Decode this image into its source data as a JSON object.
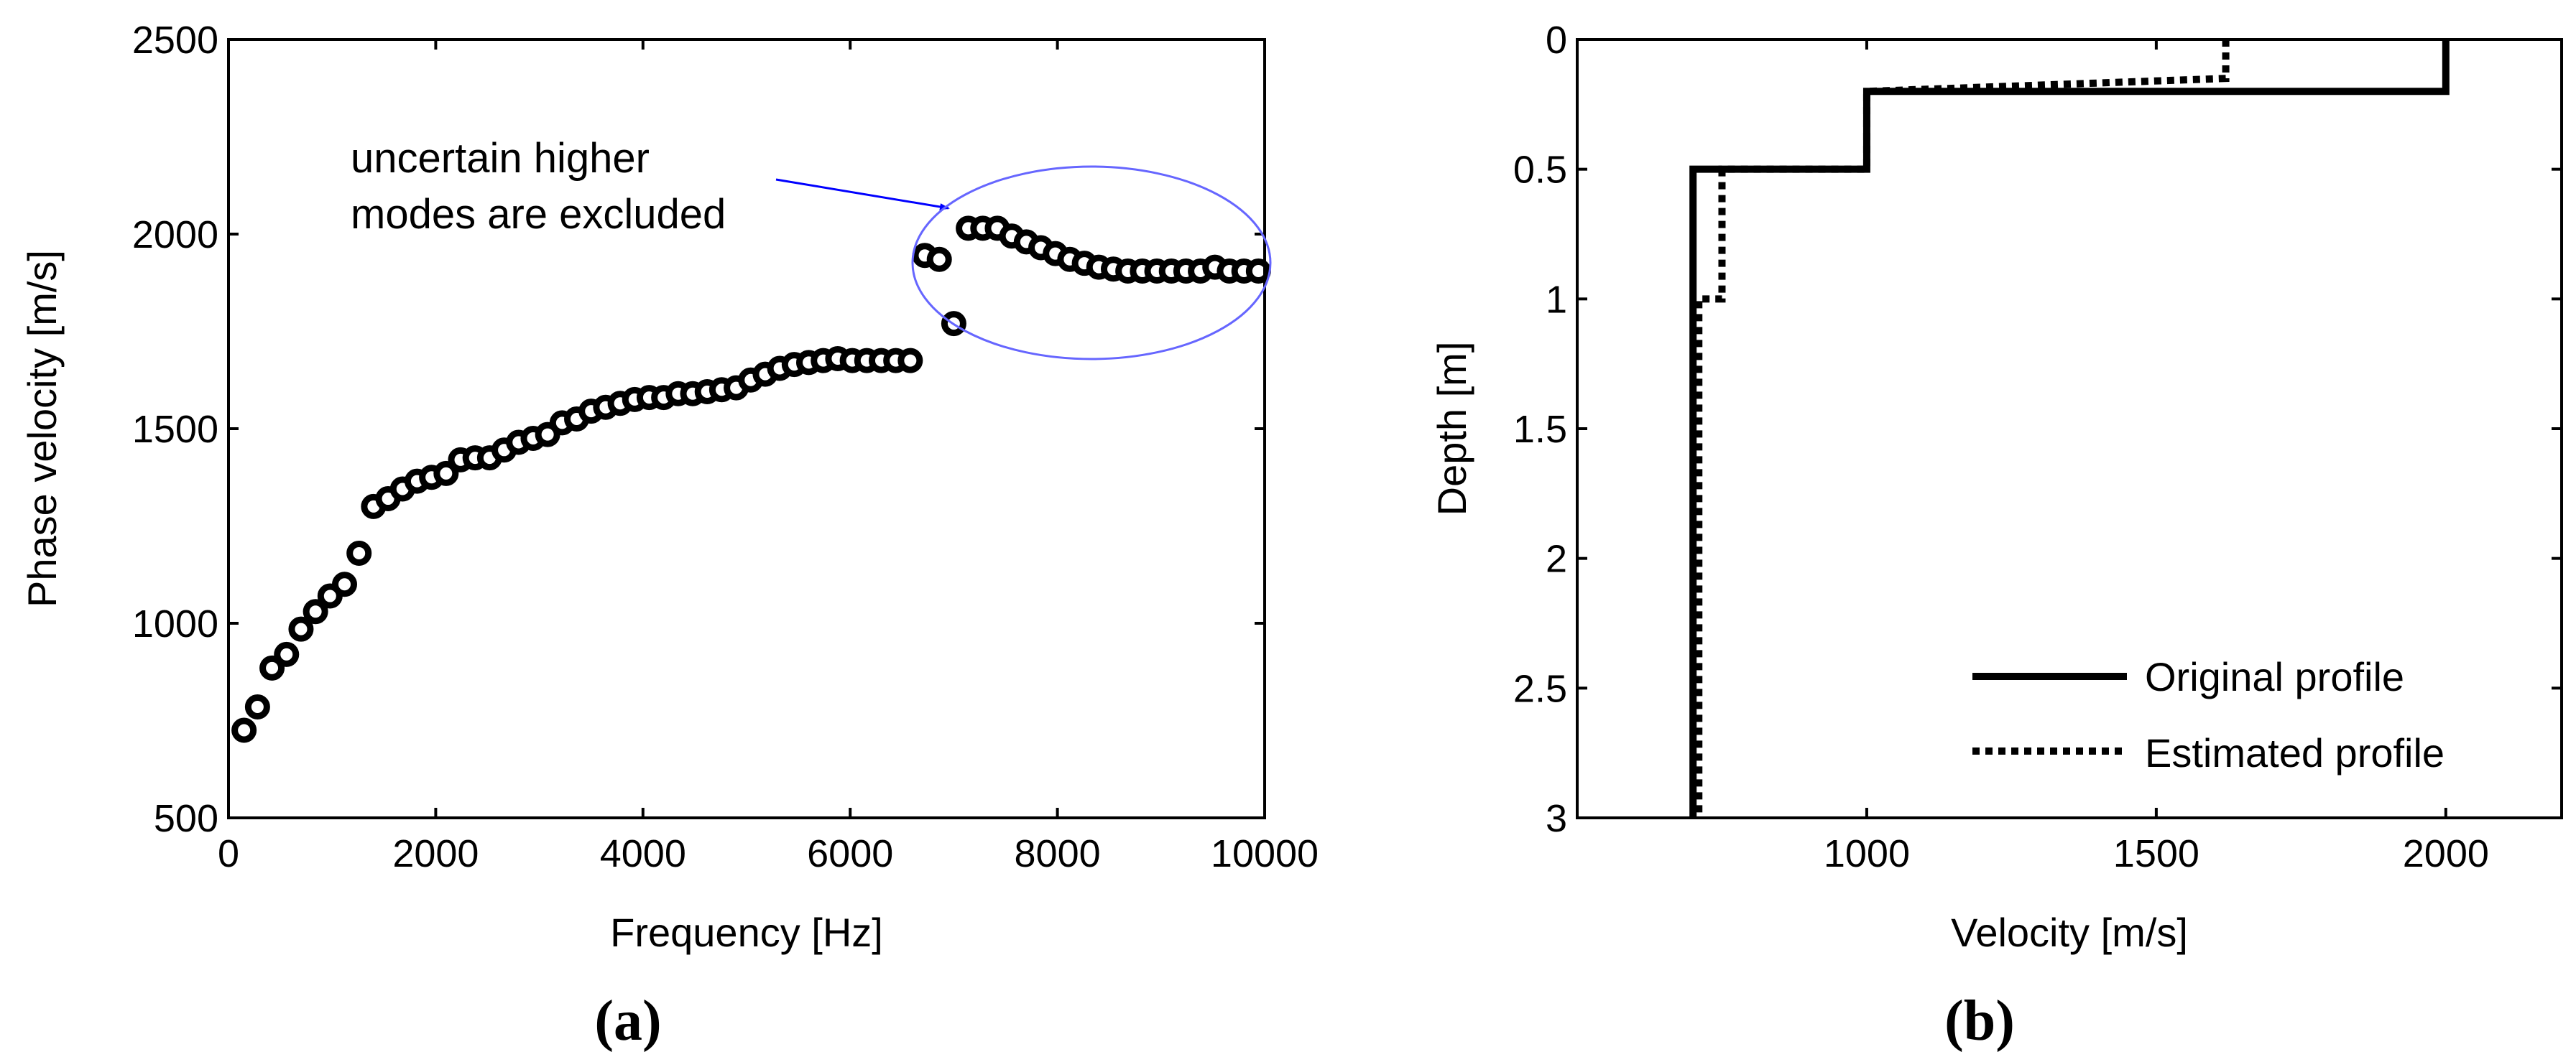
{
  "chart_data": [
    {
      "type": "scatter",
      "panel_label": "(a)",
      "xlabel": "Frequency [Hz]",
      "ylabel": "Phase velocity [m/s]",
      "xlim": [
        0,
        10000
      ],
      "ylim": [
        500,
        2500
      ],
      "xticks": [
        0,
        2000,
        4000,
        6000,
        8000,
        10000
      ],
      "xtick_labels": [
        "0",
        "2000",
        "4000",
        "6000",
        "8000",
        "10000"
      ],
      "yticks": [
        500,
        1000,
        1500,
        2000,
        2500
      ],
      "ytick_labels": [
        "500",
        "1000",
        "1500",
        "2000",
        "2500"
      ],
      "annotation": {
        "lines": [
          "uncertain higher",
          "modes are excluded"
        ],
        "arrow_color": "#0000ff",
        "ellipse_color": "#6666ff"
      },
      "series": [
        {
          "name": "Phase velocity",
          "marker": "circle",
          "x": [
            150,
            280,
            420,
            560,
            700,
            840,
            980,
            1120,
            1260,
            1400,
            1540,
            1680,
            1820,
            1960,
            2100,
            2240,
            2380,
            2520,
            2660,
            2800,
            2940,
            3080,
            3220,
            3360,
            3500,
            3640,
            3780,
            3920,
            4060,
            4200,
            4340,
            4480,
            4620,
            4760,
            4900,
            5040,
            5180,
            5320,
            5460,
            5600,
            5740,
            5880,
            6020,
            6160,
            6300,
            6440,
            6580,
            6720,
            6860,
            7000,
            7140,
            7280,
            7420,
            7560,
            7700,
            7840,
            7980,
            8120,
            8260,
            8400,
            8540,
            8680,
            8820,
            8960,
            9100,
            9240,
            9380,
            9520,
            9660,
            9800,
            9940
          ],
          "y": [
            725,
            785,
            885,
            920,
            985,
            1030,
            1070,
            1100,
            1180,
            1300,
            1320,
            1345,
            1365,
            1375,
            1385,
            1420,
            1425,
            1425,
            1445,
            1465,
            1475,
            1485,
            1515,
            1525,
            1545,
            1555,
            1565,
            1575,
            1580,
            1580,
            1590,
            1590,
            1595,
            1600,
            1605,
            1625,
            1640,
            1655,
            1665,
            1670,
            1675,
            1680,
            1675,
            1675,
            1675,
            1675,
            1675,
            1945,
            1935,
            1770,
            2015,
            2015,
            2015,
            1995,
            1980,
            1965,
            1950,
            1935,
            1925,
            1915,
            1910,
            1905,
            1905,
            1905,
            1905,
            1905,
            1905,
            1915,
            1905,
            1905,
            1905
          ]
        }
      ]
    },
    {
      "type": "line",
      "panel_label": "(b)",
      "xlabel": "Velocity [m/s]",
      "ylabel": "Depth [m]",
      "xlim": [
        500,
        2200
      ],
      "ylim": [
        0,
        3
      ],
      "y_reversed": true,
      "xticks": [
        1000,
        1500,
        2000
      ],
      "xtick_labels": [
        "1000",
        "1500",
        "2000"
      ],
      "yticks": [
        0,
        0.5,
        1,
        1.5,
        2,
        2.5,
        3
      ],
      "ytick_labels": [
        "0",
        "0.5",
        "1",
        "1.5",
        "2",
        "2.5",
        "3"
      ],
      "legend_position": "bottom-right",
      "series": [
        {
          "name": "Original profile",
          "style": "solid",
          "x": [
            2000,
            2000,
            1000,
            1000,
            700,
            700
          ],
          "y": [
            0,
            0.2,
            0.2,
            0.5,
            0.5,
            3
          ]
        },
        {
          "name": "Estimated profile",
          "style": "dotted",
          "x": [
            1620,
            1620,
            1000,
            1000,
            750,
            750,
            710,
            710
          ],
          "y": [
            0,
            0.15,
            0.2,
            0.5,
            0.5,
            1,
            1,
            3
          ]
        }
      ]
    }
  ]
}
